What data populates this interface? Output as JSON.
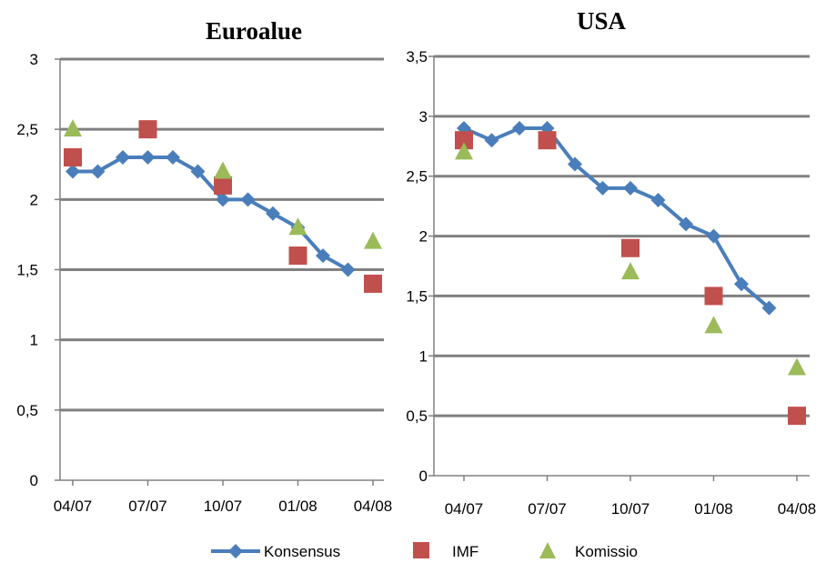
{
  "legend": {
    "series": [
      {
        "label": "Konsensus",
        "color": "#4a7ebb",
        "marker": "diamond"
      },
      {
        "label": "IMF",
        "color": "#c0504d",
        "marker": "square"
      },
      {
        "label": "Komissio",
        "color": "#9bbb59",
        "marker": "triangle"
      }
    ]
  },
  "chart_data": [
    {
      "type": "line",
      "title": "Euroalue",
      "x_ticks": [
        "04/07",
        "07/07",
        "10/07",
        "01/08",
        "04/08"
      ],
      "y_ticks": [
        "0",
        "0,5",
        "1",
        "1,5",
        "2",
        "2,5",
        "3"
      ],
      "ylim": [
        0,
        3
      ],
      "grid": true,
      "series": [
        {
          "name": "Konsensus",
          "type": "line",
          "x": [
            "04/07",
            "05/07",
            "06/07",
            "07/07",
            "08/07",
            "09/07",
            "10/07",
            "11/07",
            "12/07",
            "01/08",
            "02/08",
            "03/08"
          ],
          "values": [
            2.2,
            2.2,
            2.3,
            2.3,
            2.3,
            2.2,
            2.0,
            2.0,
            1.9,
            1.8,
            1.6,
            1.5
          ]
        },
        {
          "name": "IMF",
          "type": "scatter",
          "x": [
            "04/07",
            "07/07",
            "10/07",
            "01/08",
            "04/08"
          ],
          "values": [
            2.3,
            2.5,
            2.1,
            1.6,
            1.4
          ]
        },
        {
          "name": "Komissio",
          "type": "scatter",
          "x": [
            "04/07",
            "10/07",
            "01/08",
            "04/08"
          ],
          "values": [
            2.5,
            2.2,
            1.8,
            1.7
          ]
        }
      ]
    },
    {
      "type": "line",
      "title": "USA",
      "x_ticks": [
        "04/07",
        "07/07",
        "10/07",
        "01/08",
        "04/08"
      ],
      "y_ticks": [
        "0",
        "0,5",
        "1",
        "1,5",
        "2",
        "2,5",
        "3",
        "3,5"
      ],
      "ylim": [
        0,
        3.5
      ],
      "grid": true,
      "series": [
        {
          "name": "Konsensus",
          "type": "line",
          "x": [
            "04/07",
            "05/07",
            "06/07",
            "07/07",
            "08/07",
            "09/07",
            "10/07",
            "11/07",
            "12/07",
            "01/08",
            "02/08",
            "03/08"
          ],
          "values": [
            2.9,
            2.8,
            2.9,
            2.9,
            2.6,
            2.4,
            2.4,
            2.3,
            2.1,
            2.0,
            1.6,
            1.4
          ]
        },
        {
          "name": "IMF",
          "type": "scatter",
          "x": [
            "04/07",
            "07/07",
            "10/07",
            "01/08",
            "04/08"
          ],
          "values": [
            2.8,
            2.8,
            1.9,
            1.5,
            0.5
          ]
        },
        {
          "name": "Komissio",
          "type": "scatter",
          "x": [
            "04/07",
            "10/07",
            "01/08",
            "04/08"
          ],
          "values": [
            2.7,
            1.7,
            1.25,
            0.9
          ]
        }
      ]
    }
  ]
}
